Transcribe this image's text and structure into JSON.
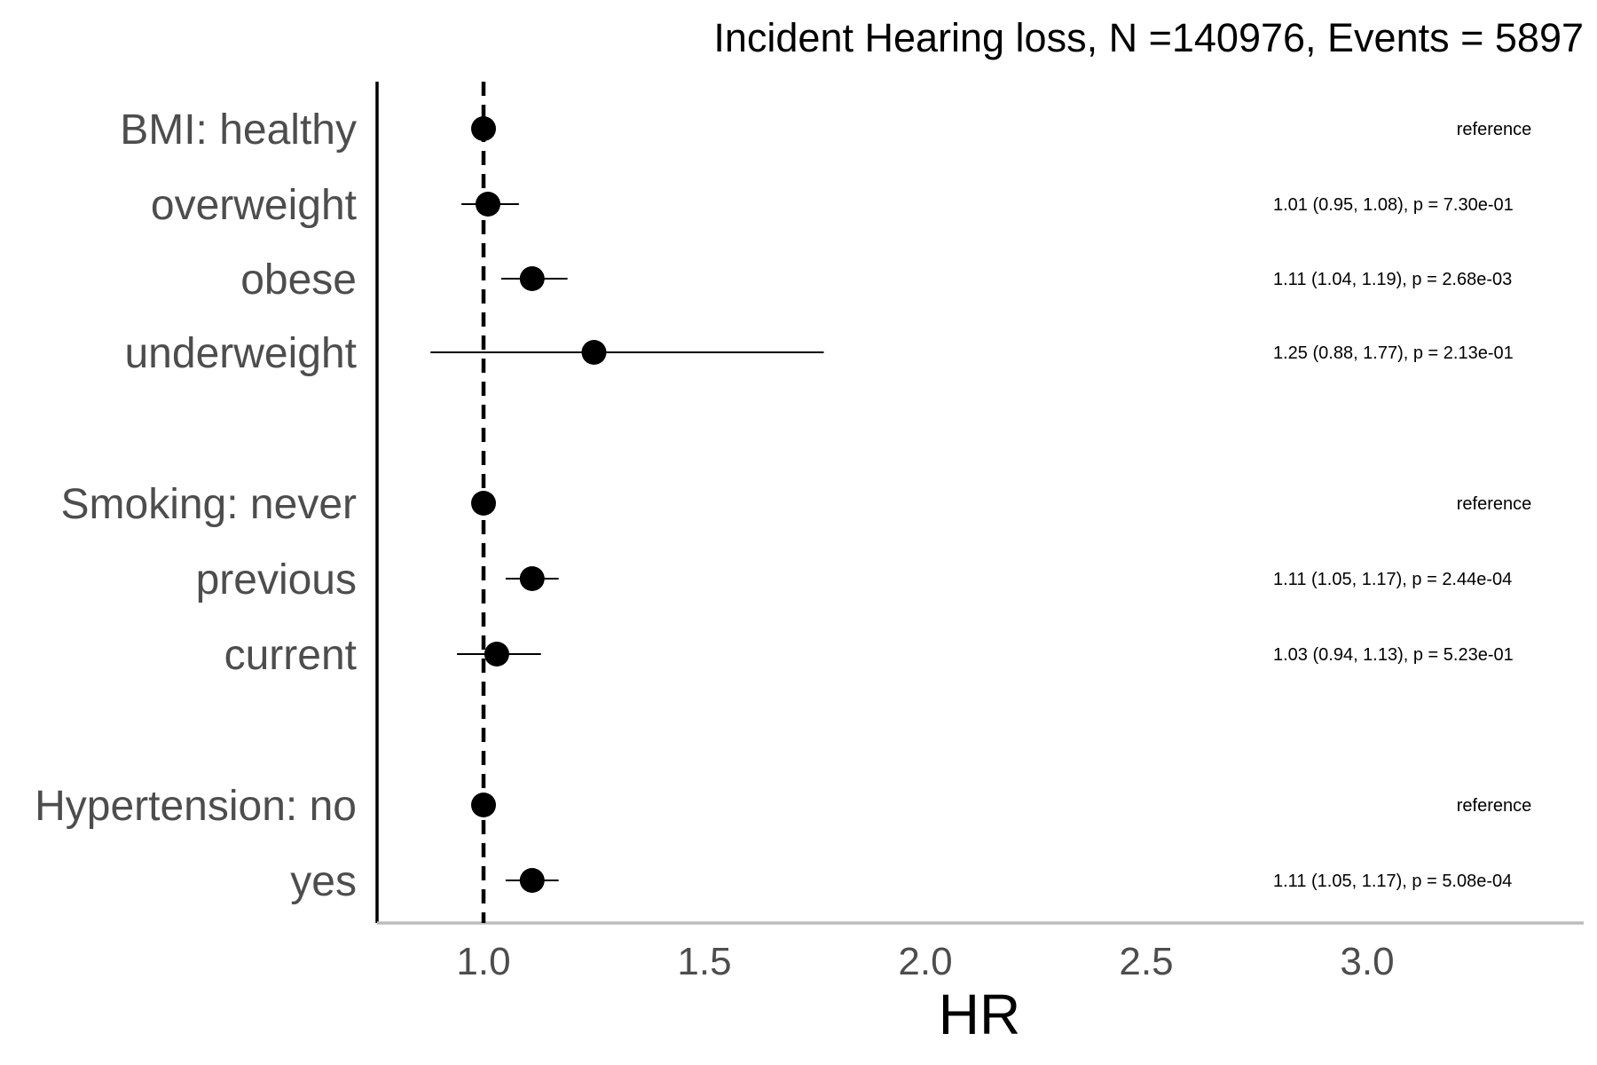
{
  "chart_data": {
    "type": "forest",
    "title": "Incident Hearing loss, N =140976, Events = 5897",
    "xlabel": "HR",
    "ylabel": "",
    "xlim": [
      0.76,
      3.5
    ],
    "xticks": [
      1.0,
      1.5,
      2.0,
      2.5,
      3.0
    ],
    "xtick_labels": [
      "1.0",
      "1.5",
      "2.0",
      "2.5",
      "3.0"
    ],
    "reference_line": 1.0,
    "rows": [
      {
        "label": "BMI: healthy",
        "hr": 1.0,
        "lower": null,
        "upper": null,
        "annotation": "reference"
      },
      {
        "label": "overweight",
        "hr": 1.01,
        "lower": 0.95,
        "upper": 1.08,
        "annotation": "1.01 (0.95, 1.08), p = 7.30e-01"
      },
      {
        "label": "obese",
        "hr": 1.11,
        "lower": 1.04,
        "upper": 1.19,
        "annotation": "1.11 (1.04, 1.19), p = 2.68e-03"
      },
      {
        "label": "underweight",
        "hr": 1.25,
        "lower": 0.88,
        "upper": 1.77,
        "annotation": "1.25 (0.88, 1.77), p = 2.13e-01"
      },
      {
        "label": "Smoking: never",
        "hr": 1.0,
        "lower": null,
        "upper": null,
        "annotation": "reference"
      },
      {
        "label": "previous",
        "hr": 1.11,
        "lower": 1.05,
        "upper": 1.17,
        "annotation": "1.11 (1.05, 1.17), p = 2.44e-04"
      },
      {
        "label": "current",
        "hr": 1.03,
        "lower": 0.94,
        "upper": 1.13,
        "annotation": "1.03 (0.94, 1.13), p = 5.23e-01"
      },
      {
        "label": "Hypertension: no",
        "hr": 1.0,
        "lower": null,
        "upper": null,
        "annotation": "reference"
      },
      {
        "label": "yes",
        "hr": 1.11,
        "lower": 1.05,
        "upper": 1.17,
        "annotation": "1.11 (1.05, 1.17), p = 5.08e-04"
      }
    ]
  }
}
